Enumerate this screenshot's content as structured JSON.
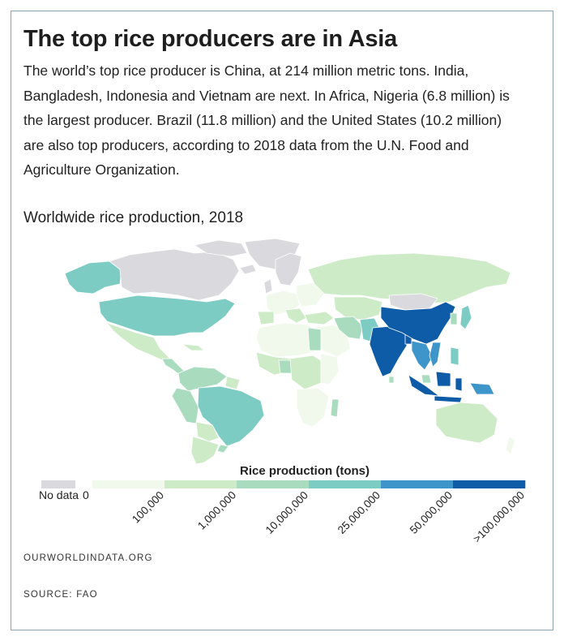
{
  "header": {
    "title": "The top rice producers are in Asia",
    "description": "The world’s top rice producer is China, at 214 million metric tons. India, Bangladesh, Indonesia and Vietnam are next. In Africa, Nigeria (6.8 million) is the largest producer. Brazil (11.8 million) and the United States (10.2 million) are also top producers, according to 2018 data from the U.N. Food and Agriculture Organization."
  },
  "map": {
    "subtitle": "Worldwide rice production, 2018"
  },
  "legend": {
    "title": "Rice production (tons)",
    "no_data_label": "No data",
    "no_data_color": "#d9d9de",
    "zero_label": "0",
    "bins": [
      {
        "color": "#f1f9ec",
        "label": "100,000"
      },
      {
        "color": "#cdebc6",
        "label": "1,000,000"
      },
      {
        "color": "#a9dcbe",
        "label": "10,000,000"
      },
      {
        "color": "#7dccc3",
        "label": "25,000,000"
      },
      {
        "color": "#3d95c9",
        "label": "50,000,000"
      },
      {
        "color": "#0e5ca8",
        "label": ">100,000,000"
      }
    ]
  },
  "footer": {
    "site": "OURWORLDINDATA.ORG",
    "source": "SOURCE: FAO"
  }
}
